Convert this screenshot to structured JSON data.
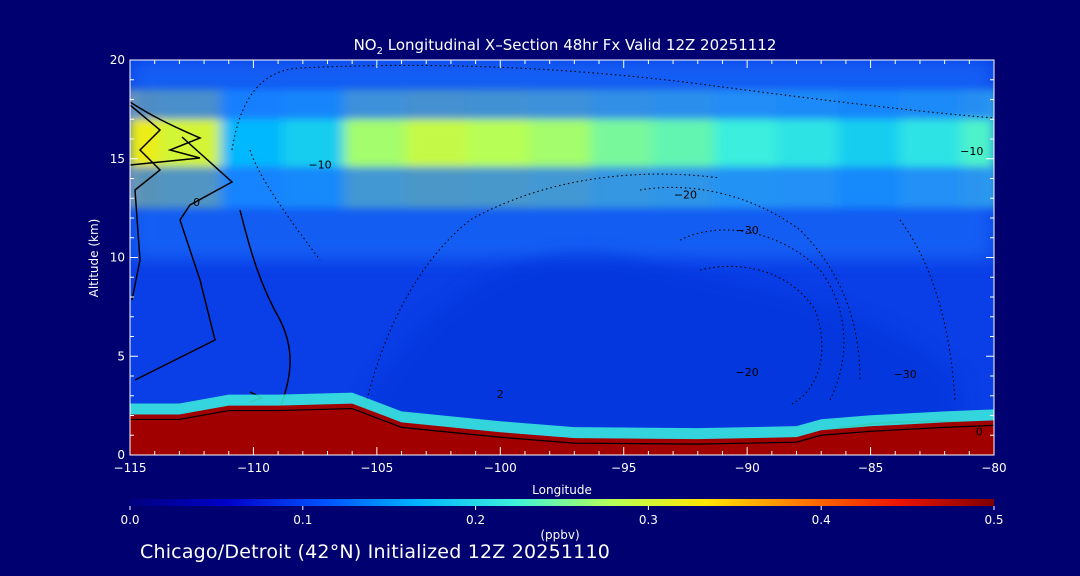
{
  "chart_data": {
    "type": "heatmap",
    "title_prefix": "NO",
    "title_subscript": "2",
    "title_suffix": " Longitudinal X–Section 48hr  Fx Valid 12Z 20251112",
    "xlabel": "Longitude",
    "ylabel": "Altitude (km)",
    "xlim": [
      -115,
      -80
    ],
    "ylim": [
      0,
      20
    ],
    "x_ticks": [
      -115,
      -110,
      -105,
      -100,
      -95,
      -90,
      -85,
      -80
    ],
    "x_tick_labels": [
      "−115",
      "−110",
      "−105",
      "−100",
      "−95",
      "−90",
      "−85",
      "−80"
    ],
    "y_ticks": [
      0,
      5,
      10,
      15,
      20
    ],
    "y_tick_labels": [
      "0",
      "5",
      "10",
      "15",
      "20"
    ],
    "colorbar": {
      "min": 0.0,
      "max": 0.5,
      "unit": "(ppbv)",
      "ticks": [
        0.0,
        0.1,
        0.2,
        0.3,
        0.4,
        0.5
      ],
      "tick_labels": [
        "0.0",
        "0.1",
        "0.2",
        "0.3",
        "0.4",
        "0.5"
      ],
      "colors": [
        "#000080",
        "#0000c8",
        "#0050ff",
        "#00b4ff",
        "#3cf0dc",
        "#b4ff5a",
        "#ffe600",
        "#ff7800",
        "#f01400",
        "#800000"
      ]
    },
    "no2_layer": {
      "peak_altitude_km": 15.8,
      "profile": [
        {
          "lon": -115,
          "peak": 0.32
        },
        {
          "lon": -112.5,
          "peak": 0.3
        },
        {
          "lon": -110,
          "peak": 0.17
        },
        {
          "lon": -107.5,
          "peak": 0.19
        },
        {
          "lon": -105,
          "peak": 0.27
        },
        {
          "lon": -102.5,
          "peak": 0.29
        },
        {
          "lon": -100,
          "peak": 0.28
        },
        {
          "lon": -97.5,
          "peak": 0.27
        },
        {
          "lon": -95,
          "peak": 0.25
        },
        {
          "lon": -92.5,
          "peak": 0.24
        },
        {
          "lon": -90,
          "peak": 0.22
        },
        {
          "lon": -87.5,
          "peak": 0.21
        },
        {
          "lon": -85,
          "peak": 0.19
        },
        {
          "lon": -82.5,
          "peak": 0.21
        },
        {
          "lon": -80,
          "peak": 0.23
        }
      ]
    },
    "terrain_km": [
      [
        -115,
        1.8
      ],
      [
        -113,
        1.8
      ],
      [
        -111,
        2.25
      ],
      [
        -109,
        2.25
      ],
      [
        -106,
        2.35
      ],
      [
        -104,
        1.4
      ],
      [
        -100,
        0.9
      ],
      [
        -97,
        0.6
      ],
      [
        -92,
        0.55
      ],
      [
        -88,
        0.65
      ],
      [
        -87,
        1.0
      ],
      [
        -85,
        1.2
      ],
      [
        -82,
        1.4
      ],
      [
        -80,
        1.5
      ]
    ],
    "contour_labels": [
      {
        "text": "−10",
        "lon": -107.3,
        "alt": 14.7
      },
      {
        "text": "−20",
        "lon": -92.5,
        "alt": 13.2
      },
      {
        "text": "−30",
        "lon": -90.0,
        "alt": 11.4
      },
      {
        "text": "−10",
        "lon": -80.9,
        "alt": 15.4
      },
      {
        "text": "−20",
        "lon": -90.0,
        "alt": 4.2
      },
      {
        "text": "−30",
        "lon": -83.6,
        "alt": 4.1
      },
      {
        "text": "2",
        "lon": -100.0,
        "alt": 3.1
      },
      {
        "text": "0",
        "lon": -112.3,
        "alt": 12.8
      },
      {
        "text": "0",
        "lon": -80.6,
        "alt": 1.2
      }
    ],
    "footer": "Chicago/Detroit (42°N) Initialized 12Z 20251110"
  }
}
